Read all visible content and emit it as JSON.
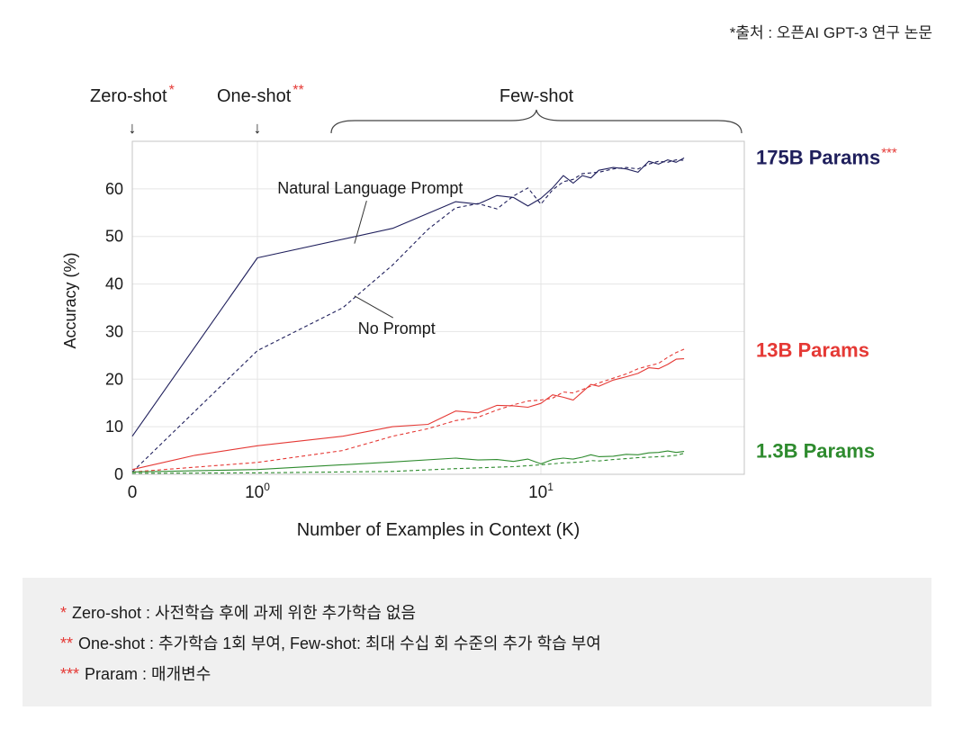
{
  "source_note": "*출처 : 오픈AI GPT-3 연구 논문",
  "regions": {
    "zero_shot": {
      "label": "Zero-shot",
      "mark": "*",
      "arrow": "↓"
    },
    "one_shot": {
      "label": "One-shot",
      "mark": "**",
      "arrow": "↓"
    },
    "few_shot": {
      "label": "Few-shot"
    }
  },
  "colors": {
    "p175": "#1f1f5c",
    "p13": "#e53935",
    "p1_3": "#2e8b2e",
    "asterisk": "#e53935",
    "grid": "#e5e5e5",
    "frame": "#c4c4c4"
  },
  "chart_data": {
    "type": "line",
    "xlabel": "Number of Examples in Context (K)",
    "ylabel": "Accuracy (%)",
    "x_scale": "symlog",
    "xlim": [
      0,
      32
    ],
    "ylim": [
      0,
      70
    ],
    "yticks": [
      0,
      10,
      20,
      30,
      40,
      50,
      60
    ],
    "xticks": [
      {
        "value": 0,
        "label": "0",
        "sup": ""
      },
      {
        "value": 1,
        "label": "10",
        "sup": "0"
      },
      {
        "value": 10,
        "label": "10",
        "sup": "1"
      }
    ],
    "grid": true,
    "annotations": [
      {
        "text": "Natural Language Prompt",
        "x": 2.5,
        "y": 59,
        "points_to": {
          "x": 2.2,
          "y": 48.5
        }
      },
      {
        "text": "No Prompt",
        "x": 3.1,
        "y": 29.5,
        "points_to": {
          "x": 2.2,
          "y": 37.5
        }
      }
    ],
    "series": [
      {
        "name": "175B Params",
        "mark": "***",
        "group": "p175",
        "style": "solid",
        "points": [
          [
            0,
            8
          ],
          [
            1,
            45.5
          ],
          [
            3,
            51.7
          ],
          [
            5,
            57.3
          ],
          [
            6,
            56.8
          ],
          [
            7,
            58.6
          ],
          [
            8,
            58.2
          ],
          [
            9,
            56.4
          ],
          [
            10,
            58
          ],
          [
            11,
            60.2
          ],
          [
            12,
            62.8
          ],
          [
            13,
            61.2
          ],
          [
            14,
            62.8
          ],
          [
            15,
            62.3
          ],
          [
            16,
            63.9
          ],
          [
            18,
            64.5
          ],
          [
            20,
            64.2
          ],
          [
            22,
            63.5
          ],
          [
            24,
            65.8
          ],
          [
            26,
            65.2
          ],
          [
            28,
            66.1
          ],
          [
            30,
            65.6
          ],
          [
            32,
            66.5
          ]
        ]
      },
      {
        "name": "",
        "group": "p175",
        "style": "dashed",
        "points": [
          [
            0,
            0.5
          ],
          [
            1,
            26
          ],
          [
            2,
            35
          ],
          [
            3,
            44
          ],
          [
            4,
            51.5
          ],
          [
            5,
            56
          ],
          [
            6,
            56.9
          ],
          [
            7,
            55.8
          ],
          [
            8,
            58.5
          ],
          [
            9,
            60.2
          ],
          [
            10,
            56.8
          ],
          [
            11,
            59.8
          ],
          [
            12,
            61.5
          ],
          [
            13,
            62
          ],
          [
            14,
            63.2
          ],
          [
            16,
            63.5
          ],
          [
            18,
            64.2
          ],
          [
            20,
            64.5
          ],
          [
            22,
            64.2
          ],
          [
            24,
            65.2
          ],
          [
            26,
            65.8
          ],
          [
            28,
            65.6
          ],
          [
            30,
            66.1
          ],
          [
            32,
            66
          ]
        ]
      },
      {
        "name": "13B Params",
        "group": "p13",
        "style": "solid",
        "points": [
          [
            0,
            1
          ],
          [
            0.5,
            4
          ],
          [
            1,
            6
          ],
          [
            2,
            8
          ],
          [
            3,
            10
          ],
          [
            4,
            10.5
          ],
          [
            5,
            13.3
          ],
          [
            6,
            12.9
          ],
          [
            7,
            14.5
          ],
          [
            8,
            14.4
          ],
          [
            9,
            14.1
          ],
          [
            10,
            14.9
          ],
          [
            11,
            16.7
          ],
          [
            12,
            16.2
          ],
          [
            13,
            15.6
          ],
          [
            14,
            17.3
          ],
          [
            15,
            18.9
          ],
          [
            16,
            18.5
          ],
          [
            18,
            19.8
          ],
          [
            20,
            20.5
          ],
          [
            22,
            21.2
          ],
          [
            24,
            22.4
          ],
          [
            26,
            22.2
          ],
          [
            28,
            23.1
          ],
          [
            30,
            24.2
          ],
          [
            32,
            24.3
          ]
        ]
      },
      {
        "name": "",
        "group": "p13",
        "style": "dashed",
        "points": [
          [
            0,
            0.5
          ],
          [
            1,
            2.5
          ],
          [
            2,
            5
          ],
          [
            3,
            8
          ],
          [
            4,
            9.6
          ],
          [
            5,
            11.3
          ],
          [
            6,
            12
          ],
          [
            7,
            13.5
          ],
          [
            8,
            14.6
          ],
          [
            9,
            15.4
          ],
          [
            10,
            15.6
          ],
          [
            11,
            16
          ],
          [
            12,
            17.3
          ],
          [
            13,
            17.1
          ],
          [
            14,
            17.8
          ],
          [
            16,
            19.2
          ],
          [
            18,
            20.2
          ],
          [
            20,
            21.1
          ],
          [
            22,
            22.2
          ],
          [
            24,
            22.8
          ],
          [
            26,
            23.3
          ],
          [
            28,
            24.6
          ],
          [
            30,
            25.6
          ],
          [
            32,
            26.3
          ]
        ]
      },
      {
        "name": "1.3B Params",
        "group": "p1_3",
        "style": "solid",
        "points": [
          [
            0,
            0.5
          ],
          [
            1,
            1
          ],
          [
            3,
            2.6
          ],
          [
            5,
            3.4
          ],
          [
            6,
            3
          ],
          [
            7,
            3.1
          ],
          [
            8,
            2.7
          ],
          [
            9,
            3.2
          ],
          [
            10,
            2.2
          ],
          [
            11,
            3.1
          ],
          [
            12,
            3.4
          ],
          [
            13,
            3.2
          ],
          [
            14,
            3.6
          ],
          [
            15,
            4.1
          ],
          [
            16,
            3.7
          ],
          [
            18,
            3.8
          ],
          [
            20,
            4.2
          ],
          [
            22,
            4.1
          ],
          [
            24,
            4.5
          ],
          [
            26,
            4.6
          ],
          [
            28,
            4.9
          ],
          [
            30,
            4.6
          ],
          [
            32,
            4.8
          ]
        ]
      },
      {
        "name": "",
        "group": "p1_3",
        "style": "dashed",
        "points": [
          [
            0,
            0.2
          ],
          [
            1,
            0.3
          ],
          [
            3,
            0.6
          ],
          [
            5,
            1.2
          ],
          [
            7,
            1.5
          ],
          [
            8,
            1.6
          ],
          [
            9,
            1.8
          ],
          [
            10,
            2
          ],
          [
            11,
            2.2
          ],
          [
            12,
            2.4
          ],
          [
            13,
            2.5
          ],
          [
            14,
            2.6
          ],
          [
            15,
            2.9
          ],
          [
            16,
            2.8
          ],
          [
            18,
            3.1
          ],
          [
            20,
            3.3
          ],
          [
            22,
            3.5
          ],
          [
            24,
            3.6
          ],
          [
            26,
            3.7
          ],
          [
            28,
            3.8
          ],
          [
            30,
            4
          ],
          [
            32,
            4.4
          ]
        ]
      }
    ]
  },
  "footnotes": [
    {
      "mark": "*",
      "text": "Zero-shot : 사전학습 후에 과제 위한 추가학습 없음"
    },
    {
      "mark": "**",
      "text": "One-shot : 추가학습 1회 부여, Few-shot: 최대 수십 회 수준의 추가 학습 부여"
    },
    {
      "mark": "***",
      "text": "Praram : 매개변수"
    }
  ]
}
